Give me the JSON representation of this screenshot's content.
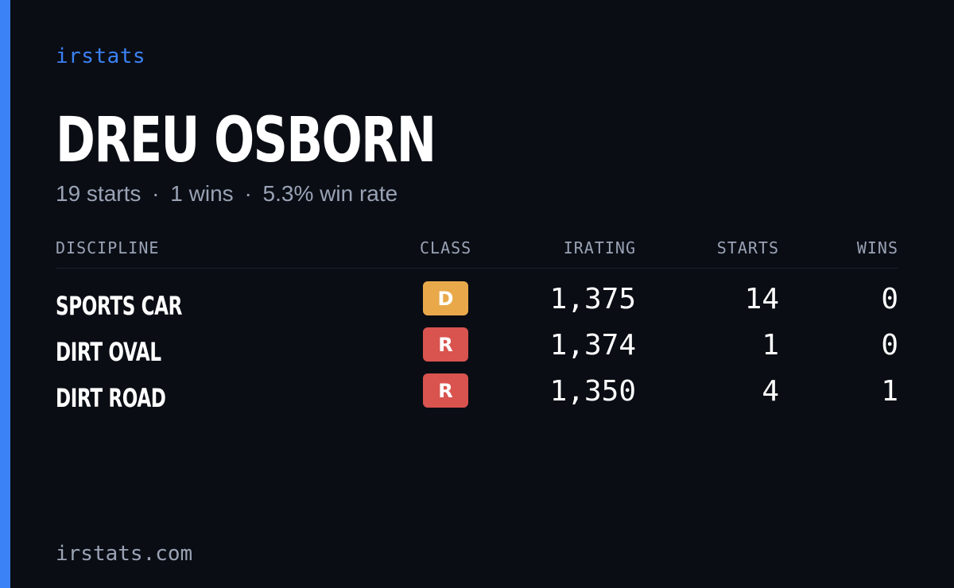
{
  "brand": "irstats",
  "driver_name": "DREU OSBORN",
  "summary": {
    "starts": "19 starts",
    "wins": "1 wins",
    "win_rate": "5.3% win rate",
    "separator": "·"
  },
  "table": {
    "headers": {
      "discipline": "DISCIPLINE",
      "class": "CLASS",
      "irating": "IRATING",
      "starts": "STARTS",
      "wins": "WINS"
    },
    "rows": [
      {
        "discipline": "SPORTS CAR",
        "class": "D",
        "class_color": "#e9a94b",
        "irating": "1,375",
        "starts": "14",
        "wins": "0"
      },
      {
        "discipline": "DIRT OVAL",
        "class": "R",
        "class_color": "#d9534f",
        "irating": "1,374",
        "starts": "1",
        "wins": "0"
      },
      {
        "discipline": "DIRT ROAD",
        "class": "R",
        "class_color": "#d9534f",
        "irating": "1,350",
        "starts": "4",
        "wins": "1"
      }
    ]
  },
  "footer": "irstats.com",
  "colors": {
    "accent": "#3b82f6",
    "background": "#0a0d14",
    "muted_text": "#9aa3b5"
  }
}
